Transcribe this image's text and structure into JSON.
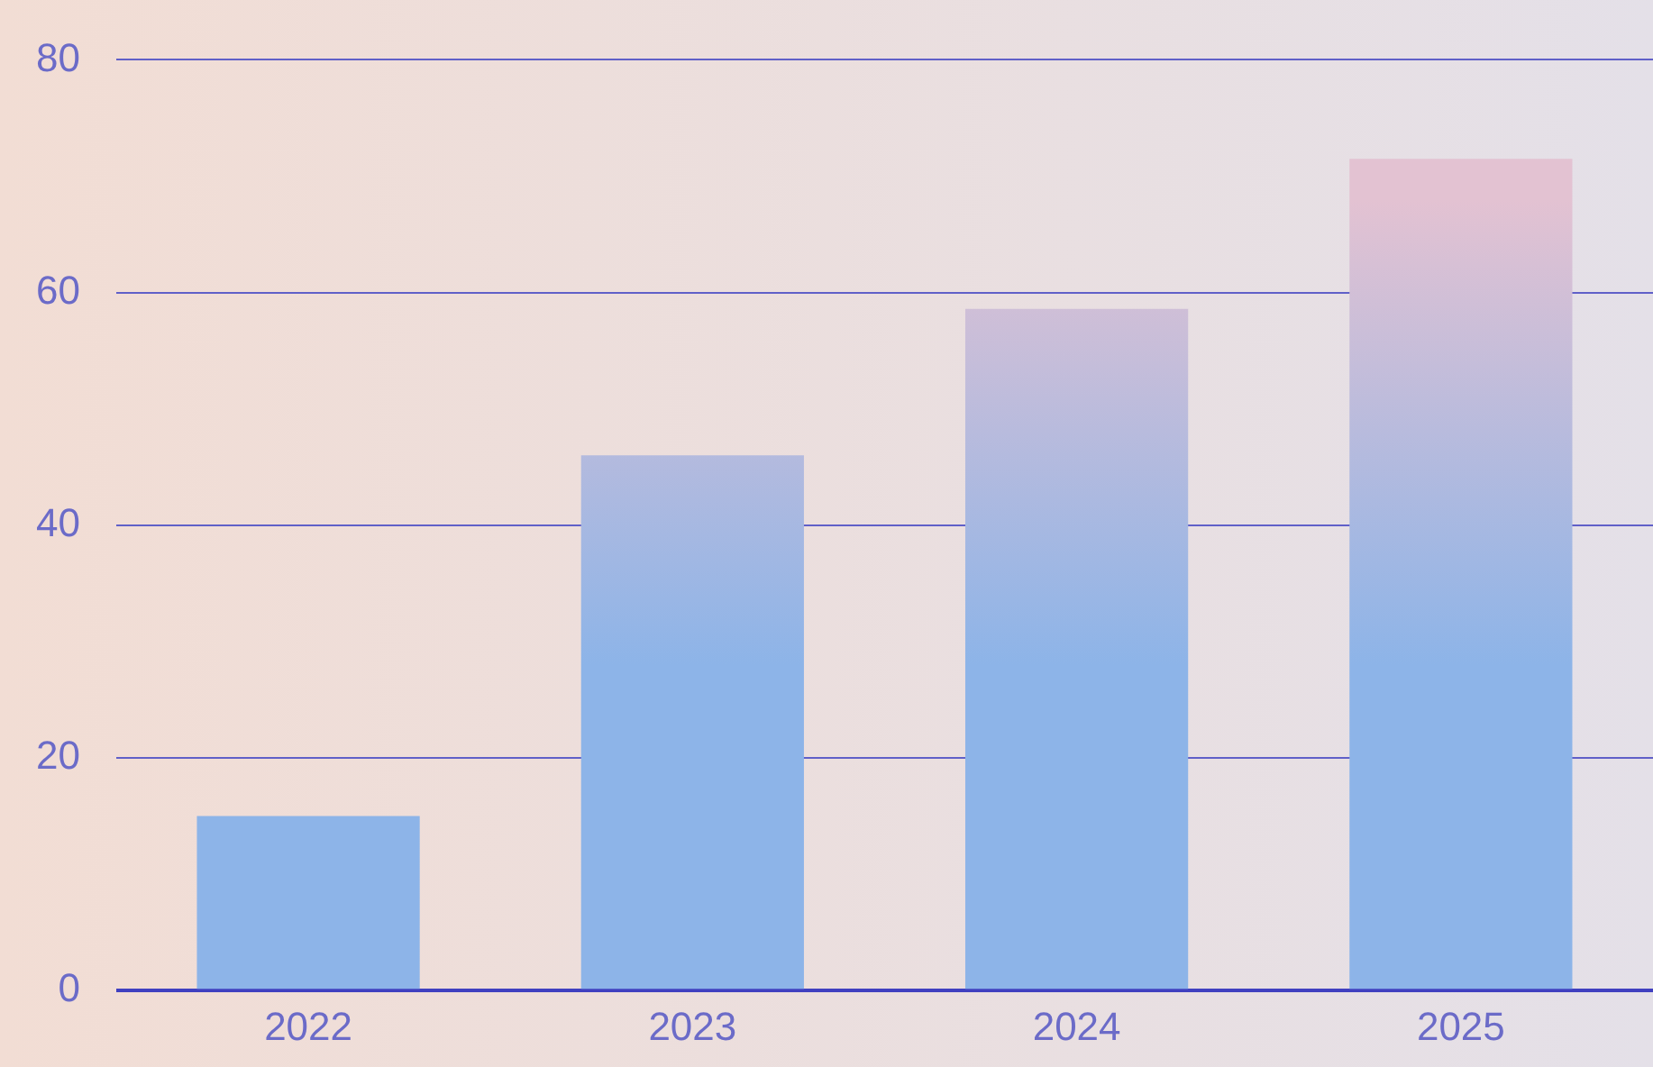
{
  "chart_data": {
    "type": "bar",
    "categories": [
      "2022",
      "2023",
      "2024",
      "2025"
    ],
    "values": [
      15,
      46,
      58.6,
      71.5
    ],
    "color": "#8db4e8",
    "ylim": [
      0,
      80
    ],
    "yticks": [
      0,
      20,
      40,
      60,
      80
    ],
    "grid": "y",
    "legend": false
  }
}
